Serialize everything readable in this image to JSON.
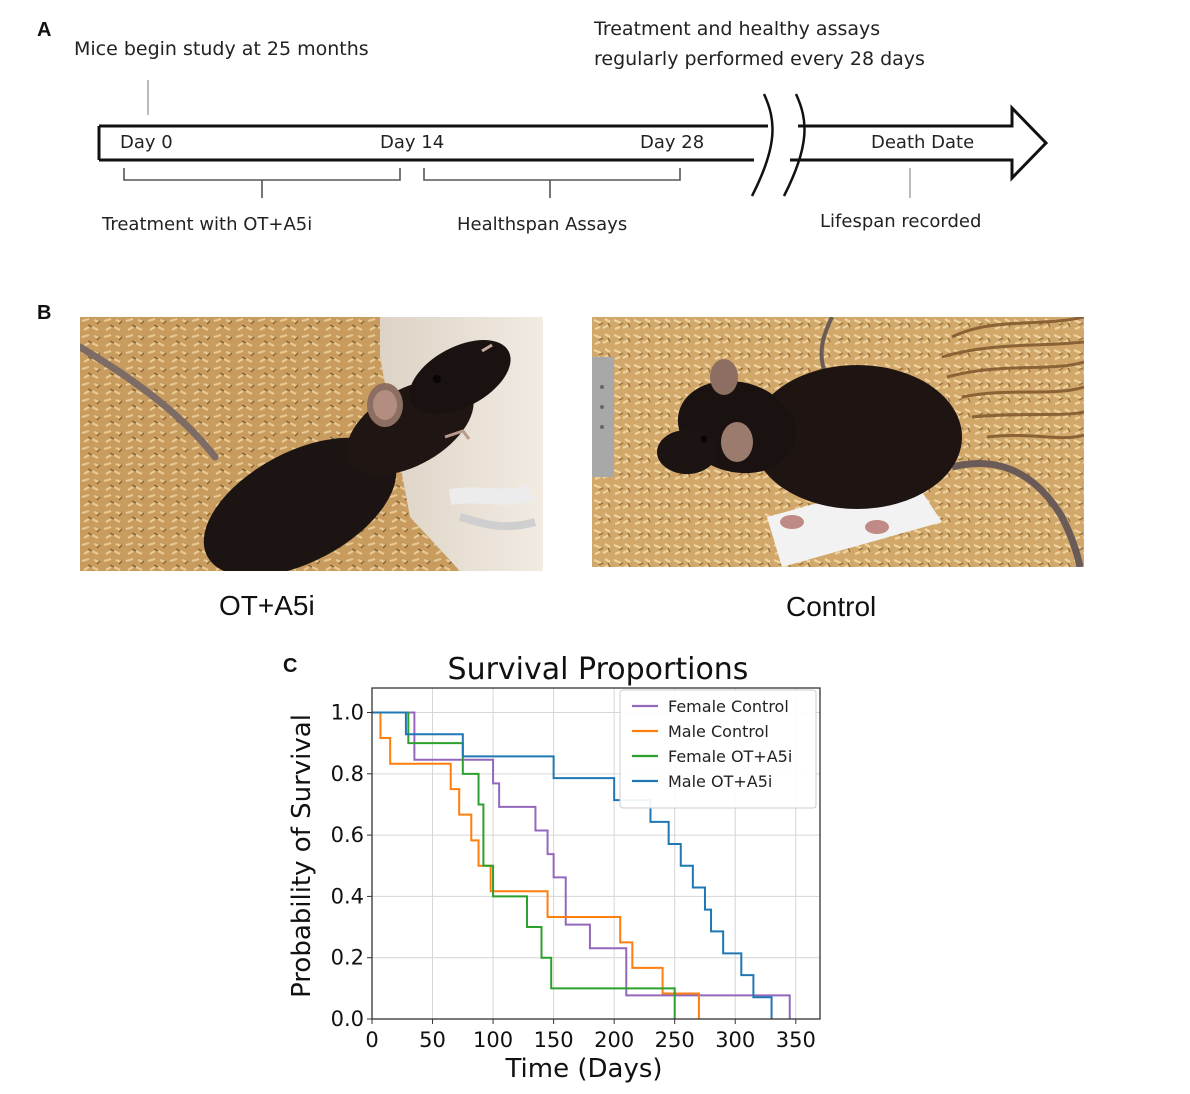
{
  "panel_a": {
    "letter": "A",
    "top_note": "Mice begin study at 25 months",
    "repeat_note_line1": "Treatment and healthy assays",
    "repeat_note_line2": "regularly performed every 28 days",
    "day0": "Day 0",
    "day14": "Day 14",
    "day28": "Day 28",
    "death": "Death Date",
    "bracket1": "Treatment with OT+A5i",
    "bracket2": "Healthspan Assays",
    "lifespan": "Lifespan recorded"
  },
  "panel_b": {
    "letter": "B",
    "left_caption": "OT+A5i",
    "right_caption": "Control"
  },
  "panel_c": {
    "letter": "C"
  },
  "chart_data": {
    "type": "line",
    "step": true,
    "title": "Survival Proportions",
    "xlabel": "Time (Days)",
    "ylabel": "Probability of Survival",
    "xlim": [
      0,
      370
    ],
    "ylim": [
      0,
      1.08
    ],
    "xticks": [
      0,
      50,
      100,
      150,
      200,
      250,
      300,
      350
    ],
    "yticks": [
      0.0,
      0.2,
      0.4,
      0.6,
      0.8,
      1.0
    ],
    "ytick_labels": [
      "0.0",
      "0.2",
      "0.4",
      "0.6",
      "0.8",
      "1.0"
    ],
    "grid": true,
    "legend_position": "top-right",
    "series": [
      {
        "name": "Female Control",
        "color": "#9467bd",
        "x": [
          0,
          35,
          100,
          105,
          135,
          145,
          150,
          160,
          180,
          210,
          330,
          345
        ],
        "y": [
          1.0,
          0.846,
          0.769,
          0.692,
          0.615,
          0.538,
          0.462,
          0.308,
          0.231,
          0.077,
          0.077,
          0.0
        ]
      },
      {
        "name": "Male Control",
        "color": "#ff7f0e",
        "x": [
          0,
          7,
          15,
          65,
          72,
          82,
          88,
          98,
          145,
          155,
          205,
          215,
          240,
          270
        ],
        "y": [
          1.0,
          0.917,
          0.833,
          0.75,
          0.667,
          0.583,
          0.5,
          0.417,
          0.333,
          0.333,
          0.25,
          0.167,
          0.083,
          0.0
        ]
      },
      {
        "name": "Female OT+A5i",
        "color": "#2ca02c",
        "x": [
          0,
          30,
          38,
          75,
          88,
          92,
          100,
          128,
          140,
          148,
          250
        ],
        "y": [
          1.0,
          0.9,
          0.9,
          0.8,
          0.7,
          0.5,
          0.4,
          0.3,
          0.2,
          0.1,
          0.0
        ]
      },
      {
        "name": "Male OT+A5i",
        "color": "#1f77b4",
        "x": [
          0,
          28,
          45,
          75,
          100,
          150,
          180,
          200,
          210,
          230,
          245,
          255,
          265,
          275,
          280,
          290,
          305,
          315,
          330
        ],
        "y": [
          1.0,
          0.929,
          0.929,
          0.857,
          0.857,
          0.786,
          0.786,
          0.714,
          0.714,
          0.643,
          0.571,
          0.5,
          0.429,
          0.357,
          0.286,
          0.214,
          0.143,
          0.071,
          0.0
        ]
      }
    ]
  }
}
